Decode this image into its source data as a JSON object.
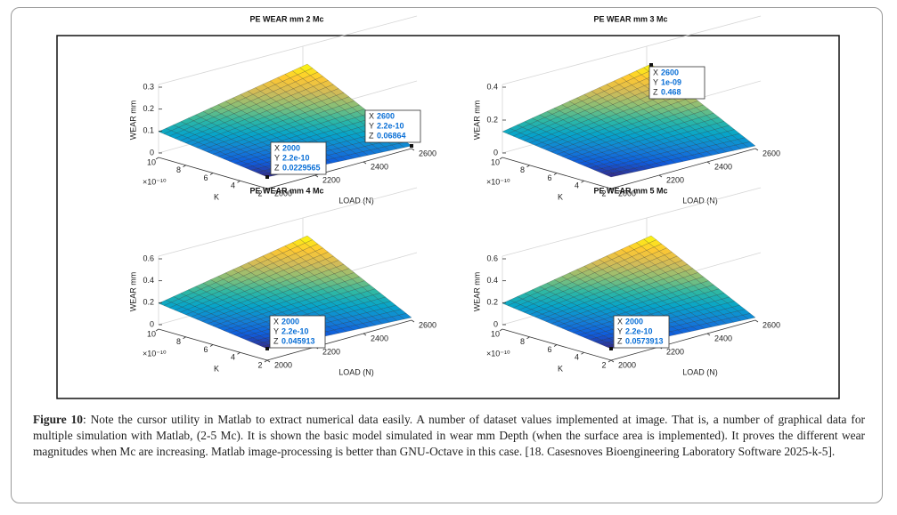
{
  "figure": {
    "datatip_labels": [
      "X",
      "Y",
      "Z"
    ],
    "panels": [
      {
        "title": "PE WEAR mm 2 Mc",
        "z_label": "WEAR mm",
        "k_label": "K",
        "k_scale": "×10⁻¹⁰",
        "load_label": "LOAD (N)",
        "zticks": [
          0,
          0.1,
          0.2,
          0.3
        ],
        "kticks": [
          10,
          8,
          6,
          4,
          2
        ],
        "loadticks": [
          2000,
          2200,
          2400,
          2600
        ],
        "datatips": [
          {
            "x": "2000",
            "y": "2.2e-10",
            "z": "0.0229565"
          },
          {
            "x": "2600",
            "y": "2.2e-10",
            "z": "0.06864"
          }
        ]
      },
      {
        "title": "PE WEAR mm 3 Mc",
        "z_label": "WEAR mm",
        "k_label": "K",
        "k_scale": "×10⁻¹⁰",
        "load_label": "LOAD (N)",
        "zticks": [
          0,
          0.2,
          0.4
        ],
        "kticks": [
          10,
          8,
          6,
          4,
          2
        ],
        "loadticks": [
          2000,
          2200,
          2400,
          2600
        ],
        "datatips": [
          {
            "x": "2600",
            "y": "1e-09",
            "z": "0.468"
          }
        ]
      },
      {
        "title": "PE WEAR mm 4 Mc",
        "z_label": "WEAR mm",
        "k_label": "K",
        "k_scale": "×10⁻¹⁰",
        "load_label": "LOAD (N)",
        "zticks": [
          0,
          0.2,
          0.4,
          0.6
        ],
        "kticks": [
          10,
          8,
          6,
          4,
          2
        ],
        "loadticks": [
          2000,
          2200,
          2400,
          2600
        ],
        "datatips": [
          {
            "x": "2000",
            "y": "2.2e-10",
            "z": "0.045913"
          }
        ]
      },
      {
        "title": "PE WEAR mm 5 Mc",
        "z_label": "WEAR mm",
        "k_label": "K",
        "k_scale": "×10⁻¹⁰",
        "load_label": "LOAD (N)",
        "zticks": [
          0,
          0.2,
          0.4,
          0.6
        ],
        "kticks": [
          10,
          8,
          6,
          4,
          2
        ],
        "loadticks": [
          2000,
          2200,
          2400,
          2600
        ],
        "datatips": [
          {
            "x": "2000",
            "y": "2.2e-10",
            "z": "0.0573913"
          }
        ]
      }
    ]
  },
  "caption": {
    "label": "Figure 10",
    "text": ": Note the cursor utility in Matlab to extract numerical data easily. A number of dataset values implemented at image. That is, a number of graphical data for multiple simulation with Matlab, (2-5 Mc). It is shown the basic model simulated in wear mm Depth (when the surface area is implemented). It proves the different wear magnitudes when Mc are increasing. Matlab image-processing is better than GNU-Octave in this case. [18. Casesnoves Bioengineering Laboratory Software 2025-k-5]."
  }
}
